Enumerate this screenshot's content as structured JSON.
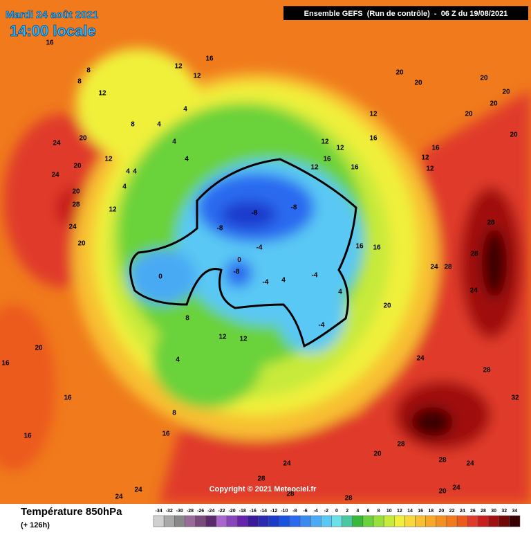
{
  "header": {
    "date": "Mardi 24 août 2021",
    "time": "14:00 locale",
    "run": "Ensemble GEFS  (Run de contrôle)  -  06 Z du 19/08/2021"
  },
  "copyright": "Copyright © 2021 Meteociel.fr",
  "map": {
    "labels": [
      "16",
      "12",
      "12",
      "16",
      "8",
      "8",
      "12",
      "8",
      "4",
      "4",
      "4",
      "4",
      "12",
      "4",
      "4",
      "4",
      "12",
      "24",
      "20",
      "20",
      "24",
      "20",
      "28",
      "24",
      "20",
      "-8",
      "-8",
      "-8",
      "-4",
      "-8",
      "-4",
      "0",
      "0",
      "-4",
      "-4",
      "4",
      "4",
      "8",
      "4",
      "12",
      "12",
      "8",
      "16",
      "16",
      "16",
      "20",
      "16",
      "24",
      "28",
      "28",
      "28",
      "24",
      "24",
      "20",
      "28",
      "24",
      "28",
      "28",
      "28",
      "28",
      "24",
      "24",
      "20",
      "16",
      "16",
      "12",
      "16",
      "12",
      "12",
      "12",
      "16",
      "16",
      "16",
      "12",
      "12",
      "20",
      "20",
      "20",
      "20",
      "20",
      "20",
      "20",
      "32",
      "28",
      "24",
      "20",
      "24"
    ]
  },
  "legend": {
    "title": "Température 850hPa",
    "lead": "(+ 126h)",
    "ticks": [
      -34,
      -32,
      -30,
      -28,
      -26,
      -24,
      -22,
      -20,
      -18,
      -16,
      -14,
      -12,
      -10,
      -8,
      -6,
      -4,
      -2,
      0,
      2,
      4,
      6,
      8,
      10,
      12,
      14,
      16,
      18,
      20,
      22,
      24,
      26,
      28,
      30,
      32,
      34
    ],
    "colors": [
      "#d0d0d0",
      "#a8a8a8",
      "#888888",
      "#9a6a9a",
      "#7a4a7a",
      "#5a2a6a",
      "#aa66cc",
      "#8844bb",
      "#6622aa",
      "#3a1a9a",
      "#2a2ab0",
      "#1a3acc",
      "#1a52e0",
      "#2a6af0",
      "#3a8af0",
      "#4aaaf4",
      "#5ac8f4",
      "#6ae0e8",
      "#4ac8a0",
      "#3ab83a",
      "#6ad23a",
      "#9ae03a",
      "#c8ea3a",
      "#f0f03a",
      "#f8d83a",
      "#f8c030",
      "#f8a828",
      "#f49020",
      "#f07a1c",
      "#ec5a1c",
      "#e03a2a",
      "#c81e1e",
      "#a01010",
      "#700808",
      "#3a0000"
    ]
  }
}
